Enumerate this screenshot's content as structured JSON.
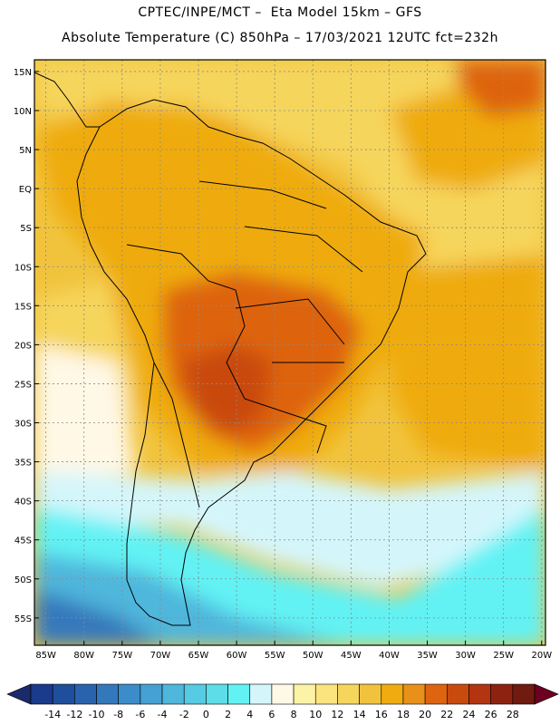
{
  "header": {
    "line1": "CPTEC/INPE/MCT –  Eta Model 15km – GFS",
    "line2": "Absolute Temperature (C) 850hPa – 17/03/2021 12UTC fct=232h"
  },
  "axes": {
    "lat_labels": [
      "15N",
      "10N",
      "5N",
      "EQ",
      "5S",
      "10S",
      "15S",
      "20S",
      "25S",
      "30S",
      "35S",
      "40S",
      "45S",
      "50S",
      "55S"
    ],
    "lat_values": [
      15,
      10,
      5,
      0,
      -5,
      -10,
      -15,
      -20,
      -25,
      -30,
      -35,
      -40,
      -45,
      -50,
      -55
    ],
    "lon_labels": [
      "85W",
      "80W",
      "75W",
      "70W",
      "65W",
      "60W",
      "55W",
      "50W",
      "45W",
      "40W",
      "35W",
      "30W",
      "25W",
      "20W"
    ],
    "lon_values": [
      -85,
      -80,
      -75,
      -70,
      -65,
      -60,
      -55,
      -50,
      -45,
      -40,
      -35,
      -30,
      -25,
      -20
    ],
    "lon_range": [
      -86.5,
      -19.5
    ],
    "lat_range": [
      -58.5,
      16.5
    ]
  },
  "colorbar": {
    "labels": [
      "-14",
      "-12",
      "-10",
      "-8",
      "-6",
      "-4",
      "-2",
      "0",
      "2",
      "4",
      "6",
      "8",
      "10",
      "12",
      "14",
      "16",
      "18",
      "20",
      "22",
      "24",
      "26",
      "28"
    ],
    "colors": [
      "#1a3a8a",
      "#1f4f9c",
      "#2a63ad",
      "#3478bc",
      "#3b8cc8",
      "#45a0d3",
      "#4fb6dc",
      "#56cbe3",
      "#5cdde8",
      "#62f2f4",
      "#d4f6fb",
      "#fff8e6",
      "#fdf3a6",
      "#fbe37e",
      "#f6d55c",
      "#f1c33d",
      "#efab10",
      "#e8901a",
      "#de6410",
      "#c94a0f",
      "#b23410",
      "#8e2210",
      "#701a10"
    ],
    "lower_arrow_color": "#1a2a6a",
    "upper_arrow_color": "#6b0020"
  },
  "palette": {
    "ocean_warm": "#f1c33d",
    "ocean_cool": "#f6d55c",
    "land_warm": "#efab10",
    "hot_core": "#de6410",
    "hotter_core": "#c94a0f",
    "cold": "#62f2f4",
    "colder": "#4fb6dc",
    "coldest": "#3478bc",
    "pale": "#fff8e6",
    "pale_blue": "#d4f6fb"
  }
}
